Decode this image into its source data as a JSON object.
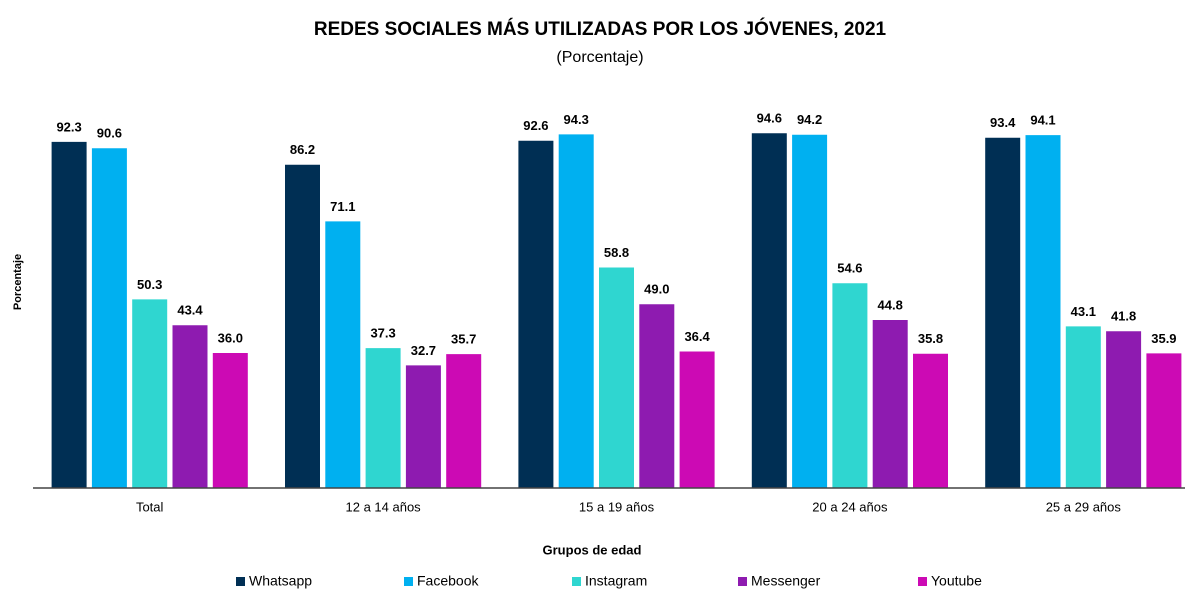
{
  "chart_data": {
    "type": "bar",
    "title": "REDES SOCIALES MÁS UTILIZADAS POR LOS JÓVENES, 2021",
    "subtitle": "(Porcentaje)",
    "y_label": "Porcentaje",
    "x_label": "Grupos de edad",
    "categories": [
      "Total",
      "12 a 14 años",
      "15 a 19 años",
      "20 a 24 años",
      "25 a 29 años"
    ],
    "ylim": [
      0,
      100
    ],
    "series": [
      {
        "name": "Whatsapp",
        "color": "#002f54",
        "values": [
          92.3,
          86.2,
          92.6,
          94.6,
          93.4
        ],
        "value_labels": [
          "92.3",
          "86.2",
          "92.6",
          "94.6",
          "93.4"
        ]
      },
      {
        "name": "Facebook",
        "color": "#00b0f0",
        "values": [
          90.6,
          71.1,
          94.3,
          94.2,
          94.1
        ],
        "value_labels": [
          "90.6",
          "71.1",
          "94.3",
          "94.2",
          "94.1"
        ]
      },
      {
        "name": "Instagram",
        "color": "#2fd6d0",
        "values": [
          50.3,
          37.3,
          58.8,
          54.6,
          43.1
        ],
        "value_labels": [
          "50.3",
          "37.3",
          "58.8",
          "54.6",
          "43.1"
        ]
      },
      {
        "name": "Messenger",
        "color": "#8e1bb0",
        "values": [
          43.4,
          32.7,
          49.0,
          44.8,
          41.8
        ],
        "value_labels": [
          "43.4",
          "32.7",
          "49.0",
          "44.8",
          "41.8"
        ]
      },
      {
        "name": "Youtube",
        "color": "#cc0ab4",
        "values": [
          36.0,
          35.7,
          36.4,
          35.8,
          35.9
        ],
        "value_labels": [
          "36.0",
          "35.7",
          "36.4",
          "35.8",
          "35.9"
        ]
      }
    ]
  }
}
